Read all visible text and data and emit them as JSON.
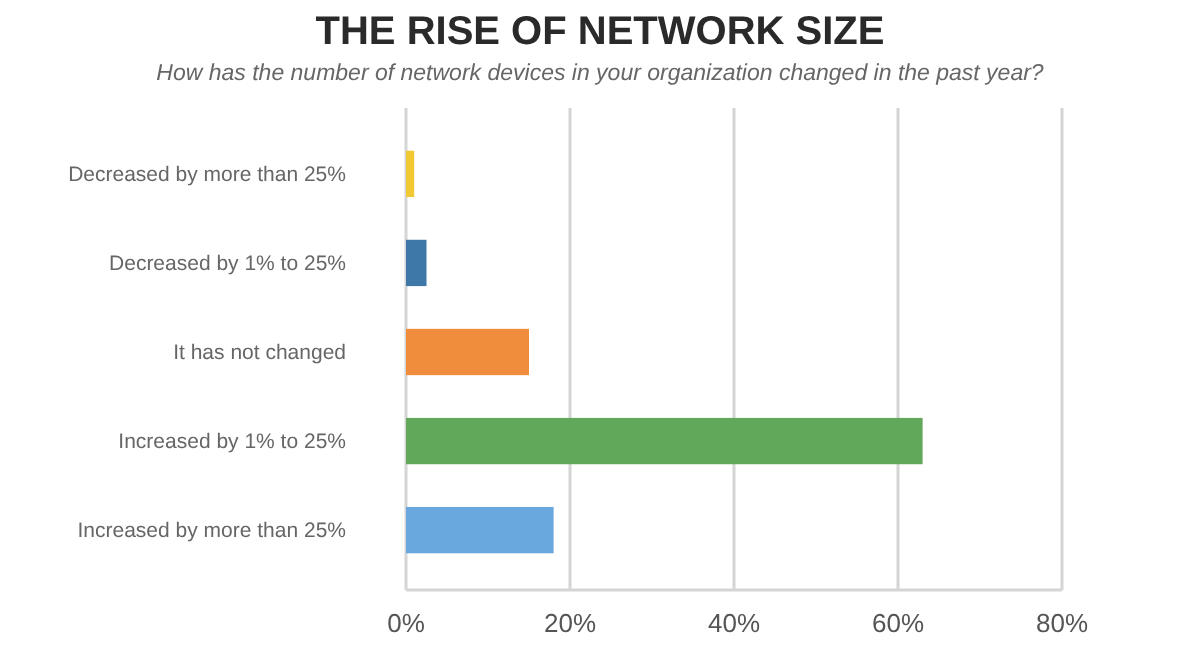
{
  "chart_data": {
    "type": "bar",
    "orientation": "horizontal",
    "title": "THE RISE OF NETWORK SIZE",
    "subtitle": "How has the number of network devices in your organization changed in the past year?",
    "categories": [
      "Decreased by more than 25%",
      "Decreased by 1% to 25%",
      "It has not changed",
      "Increased by 1% to 25%",
      "Increased by more than 25%"
    ],
    "values": [
      1,
      2.5,
      15,
      63,
      18
    ],
    "colors": [
      "#f2c933",
      "#3d78a8",
      "#f08d3c",
      "#62a85a",
      "#68a8de"
    ],
    "xlim": [
      0,
      80
    ],
    "xticks": [
      {
        "value": 0,
        "label": "0%"
      },
      {
        "value": 20,
        "label": "20%"
      },
      {
        "value": 40,
        "label": "40%"
      },
      {
        "value": 60,
        "label": "60%"
      },
      {
        "value": 80,
        "label": "80%"
      }
    ],
    "grid": "x"
  }
}
